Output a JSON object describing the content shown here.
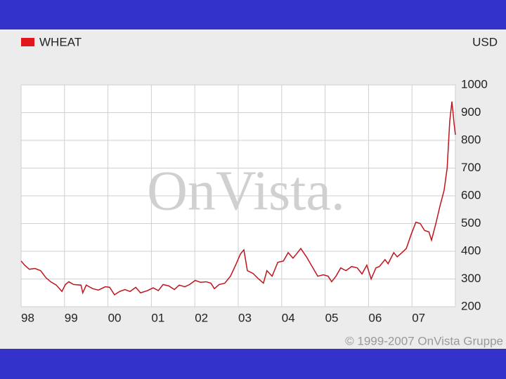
{
  "chart_data": {
    "type": "line",
    "legend_label": "WHEAT",
    "unit_label": "USD",
    "watermark": "OnVista.",
    "copyright": "© 1999-2007 OnVista Gruppe",
    "x": [
      1998.0,
      1998.08,
      1998.19,
      1998.32,
      1998.45,
      1998.57,
      1998.68,
      1998.81,
      1998.94,
      1999.02,
      1999.1,
      1999.21,
      1999.38,
      1999.42,
      1999.5,
      1999.65,
      1999.78,
      1999.94,
      2000.04,
      2000.15,
      2000.27,
      2000.39,
      2000.51,
      2000.64,
      2000.75,
      2000.91,
      2001.04,
      2001.16,
      2001.27,
      2001.4,
      2001.53,
      2001.64,
      2001.77,
      2001.88,
      2002.01,
      2002.13,
      2002.26,
      2002.37,
      2002.45,
      2002.56,
      2002.69,
      2002.82,
      2002.94,
      2003.05,
      2003.13,
      2003.21,
      2003.34,
      2003.47,
      2003.58,
      2003.66,
      2003.78,
      2003.91,
      2004.04,
      2004.15,
      2004.26,
      2004.34,
      2004.44,
      2004.57,
      2004.72,
      2004.83,
      2004.96,
      2005.07,
      2005.15,
      2005.25,
      2005.36,
      2005.48,
      2005.61,
      2005.74,
      2005.85,
      2005.96,
      2006.06,
      2006.17,
      2006.25,
      2006.38,
      2006.45,
      2006.58,
      2006.66,
      2006.77,
      2006.87,
      2006.98,
      2007.09,
      2007.19,
      2007.29,
      2007.39,
      2007.45,
      2007.55,
      2007.64,
      2007.74,
      2007.81,
      2007.87,
      2007.92,
      2007.97,
      2008.0
    ],
    "series": [
      {
        "name": "WHEAT",
        "color": "#c0141c",
        "values": [
          365,
          350,
          335,
          338,
          330,
          305,
          290,
          278,
          255,
          280,
          290,
          280,
          278,
          250,
          278,
          265,
          260,
          272,
          270,
          243,
          255,
          262,
          255,
          270,
          250,
          258,
          268,
          258,
          280,
          275,
          262,
          278,
          272,
          280,
          295,
          288,
          290,
          285,
          265,
          280,
          285,
          310,
          350,
          390,
          405,
          330,
          320,
          300,
          285,
          330,
          310,
          360,
          365,
          395,
          375,
          390,
          410,
          380,
          340,
          310,
          315,
          310,
          290,
          310,
          340,
          330,
          345,
          340,
          318,
          350,
          300,
          340,
          345,
          370,
          355,
          395,
          380,
          395,
          410,
          460,
          505,
          500,
          475,
          470,
          440,
          500,
          560,
          620,
          700,
          870,
          940,
          860,
          820
        ]
      }
    ],
    "xlim": [
      1998,
      2008
    ],
    "xticks": [
      {
        "value": 1998,
        "label": "98"
      },
      {
        "value": 1999,
        "label": "99"
      },
      {
        "value": 2000,
        "label": "00"
      },
      {
        "value": 2001,
        "label": "01"
      },
      {
        "value": 2002,
        "label": "02"
      },
      {
        "value": 2003,
        "label": "03"
      },
      {
        "value": 2004,
        "label": "04"
      },
      {
        "value": 2005,
        "label": "05"
      },
      {
        "value": 2006,
        "label": "06"
      },
      {
        "value": 2007,
        "label": "07"
      }
    ],
    "ylim": [
      200,
      1000
    ],
    "yticks": [
      200,
      300,
      400,
      500,
      600,
      700,
      800,
      900,
      1000
    ],
    "grid": true
  }
}
